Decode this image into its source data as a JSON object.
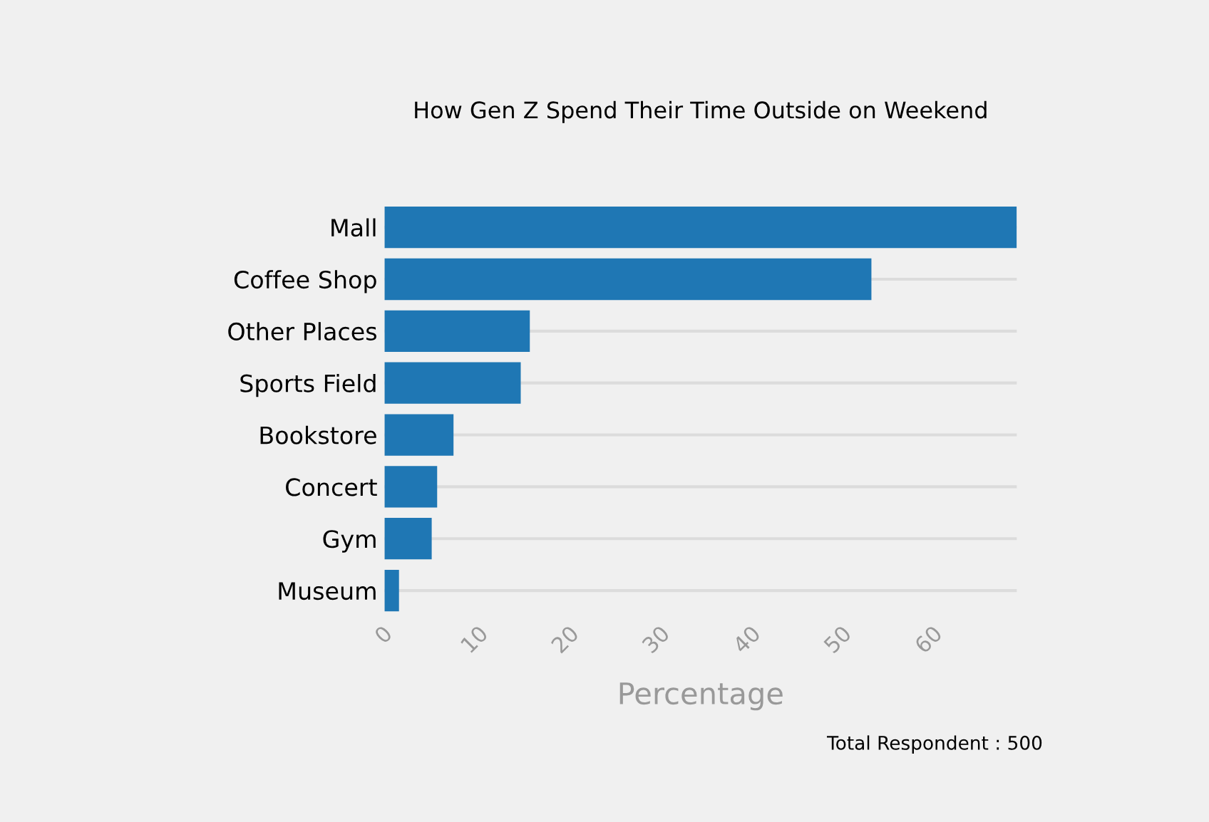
{
  "chart_data": {
    "type": "bar",
    "orientation": "horizontal",
    "title": "How Gen Z Spend Their Time Outside on Weekend",
    "xlabel": "Percentage",
    "categories": [
      "Mall",
      "Coffee Shop",
      "Other Places",
      "Sports Field",
      "Bookstore",
      "Concert",
      "Gym",
      "Museum"
    ],
    "values": [
      69.6,
      53.6,
      16,
      15,
      7.6,
      5.8,
      5.2,
      1.6
    ],
    "color": "#1f77b4",
    "xlim": [
      0,
      69.6
    ],
    "xticks": [
      0,
      10,
      20,
      30,
      40,
      50,
      60
    ],
    "grid": "y",
    "annotations": [
      "Total Respondent : 500"
    ]
  }
}
